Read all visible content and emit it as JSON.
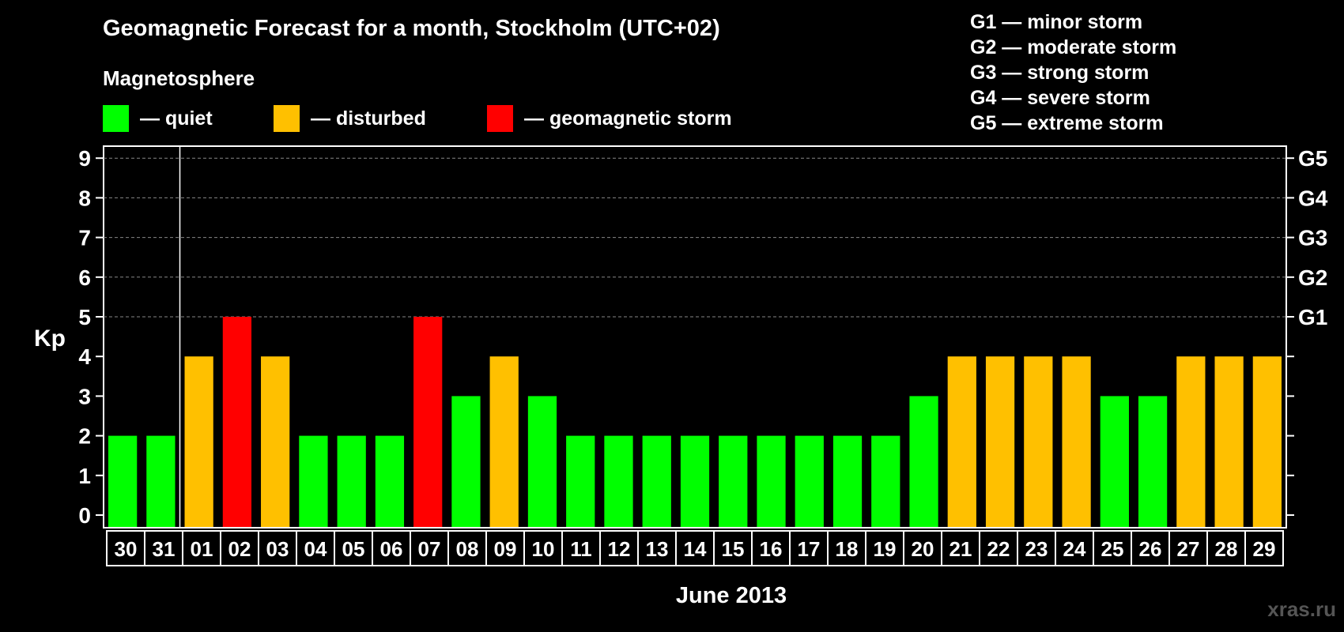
{
  "title": "Geomagnetic Forecast for a month, Stockholm (UTC+02)",
  "magnetosphere_label": "Magnetosphere",
  "legend": [
    {
      "label": "— quiet",
      "color": "#00ff00"
    },
    {
      "label": "— disturbed",
      "color": "#ffc000"
    },
    {
      "label": "— geomagnetic storm",
      "color": "#ff0000"
    }
  ],
  "storm_levels": [
    "G1 — minor storm",
    "G2 — moderate storm",
    "G3 — strong storm",
    "G4 — severe storm",
    "G5 — extreme storm"
  ],
  "watermark": "xras.ru",
  "chart_data": {
    "type": "bar",
    "title": "Geomagnetic Forecast for a month, Stockholm (UTC+02)",
    "ylabel": "Kp",
    "xlabel": "June 2013",
    "ylim": [
      0,
      9
    ],
    "yticks": [
      "0",
      "1",
      "2",
      "3",
      "4",
      "5",
      "6",
      "7",
      "8",
      "9"
    ],
    "right_axis_labels": [
      {
        "kp": 5,
        "label": "G1"
      },
      {
        "kp": 6,
        "label": "G2"
      },
      {
        "kp": 7,
        "label": "G3"
      },
      {
        "kp": 8,
        "label": "G4"
      },
      {
        "kp": 9,
        "label": "G5"
      }
    ],
    "grid": "dashed horizontal at Kp 5-9",
    "categories": [
      "30",
      "31",
      "01",
      "02",
      "03",
      "04",
      "05",
      "06",
      "07",
      "08",
      "09",
      "10",
      "11",
      "12",
      "13",
      "14",
      "15",
      "16",
      "17",
      "18",
      "19",
      "20",
      "21",
      "22",
      "23",
      "24",
      "25",
      "26",
      "27",
      "28",
      "29"
    ],
    "values": [
      2,
      2,
      4,
      5,
      4,
      2,
      2,
      2,
      5,
      3,
      4,
      3,
      2,
      2,
      2,
      2,
      2,
      2,
      2,
      2,
      2,
      3,
      4,
      4,
      4,
      4,
      3,
      3,
      4,
      4,
      4
    ],
    "colors": {
      "quiet": "#00ff00",
      "disturbed": "#ffc000",
      "storm": "#ff0000"
    }
  }
}
